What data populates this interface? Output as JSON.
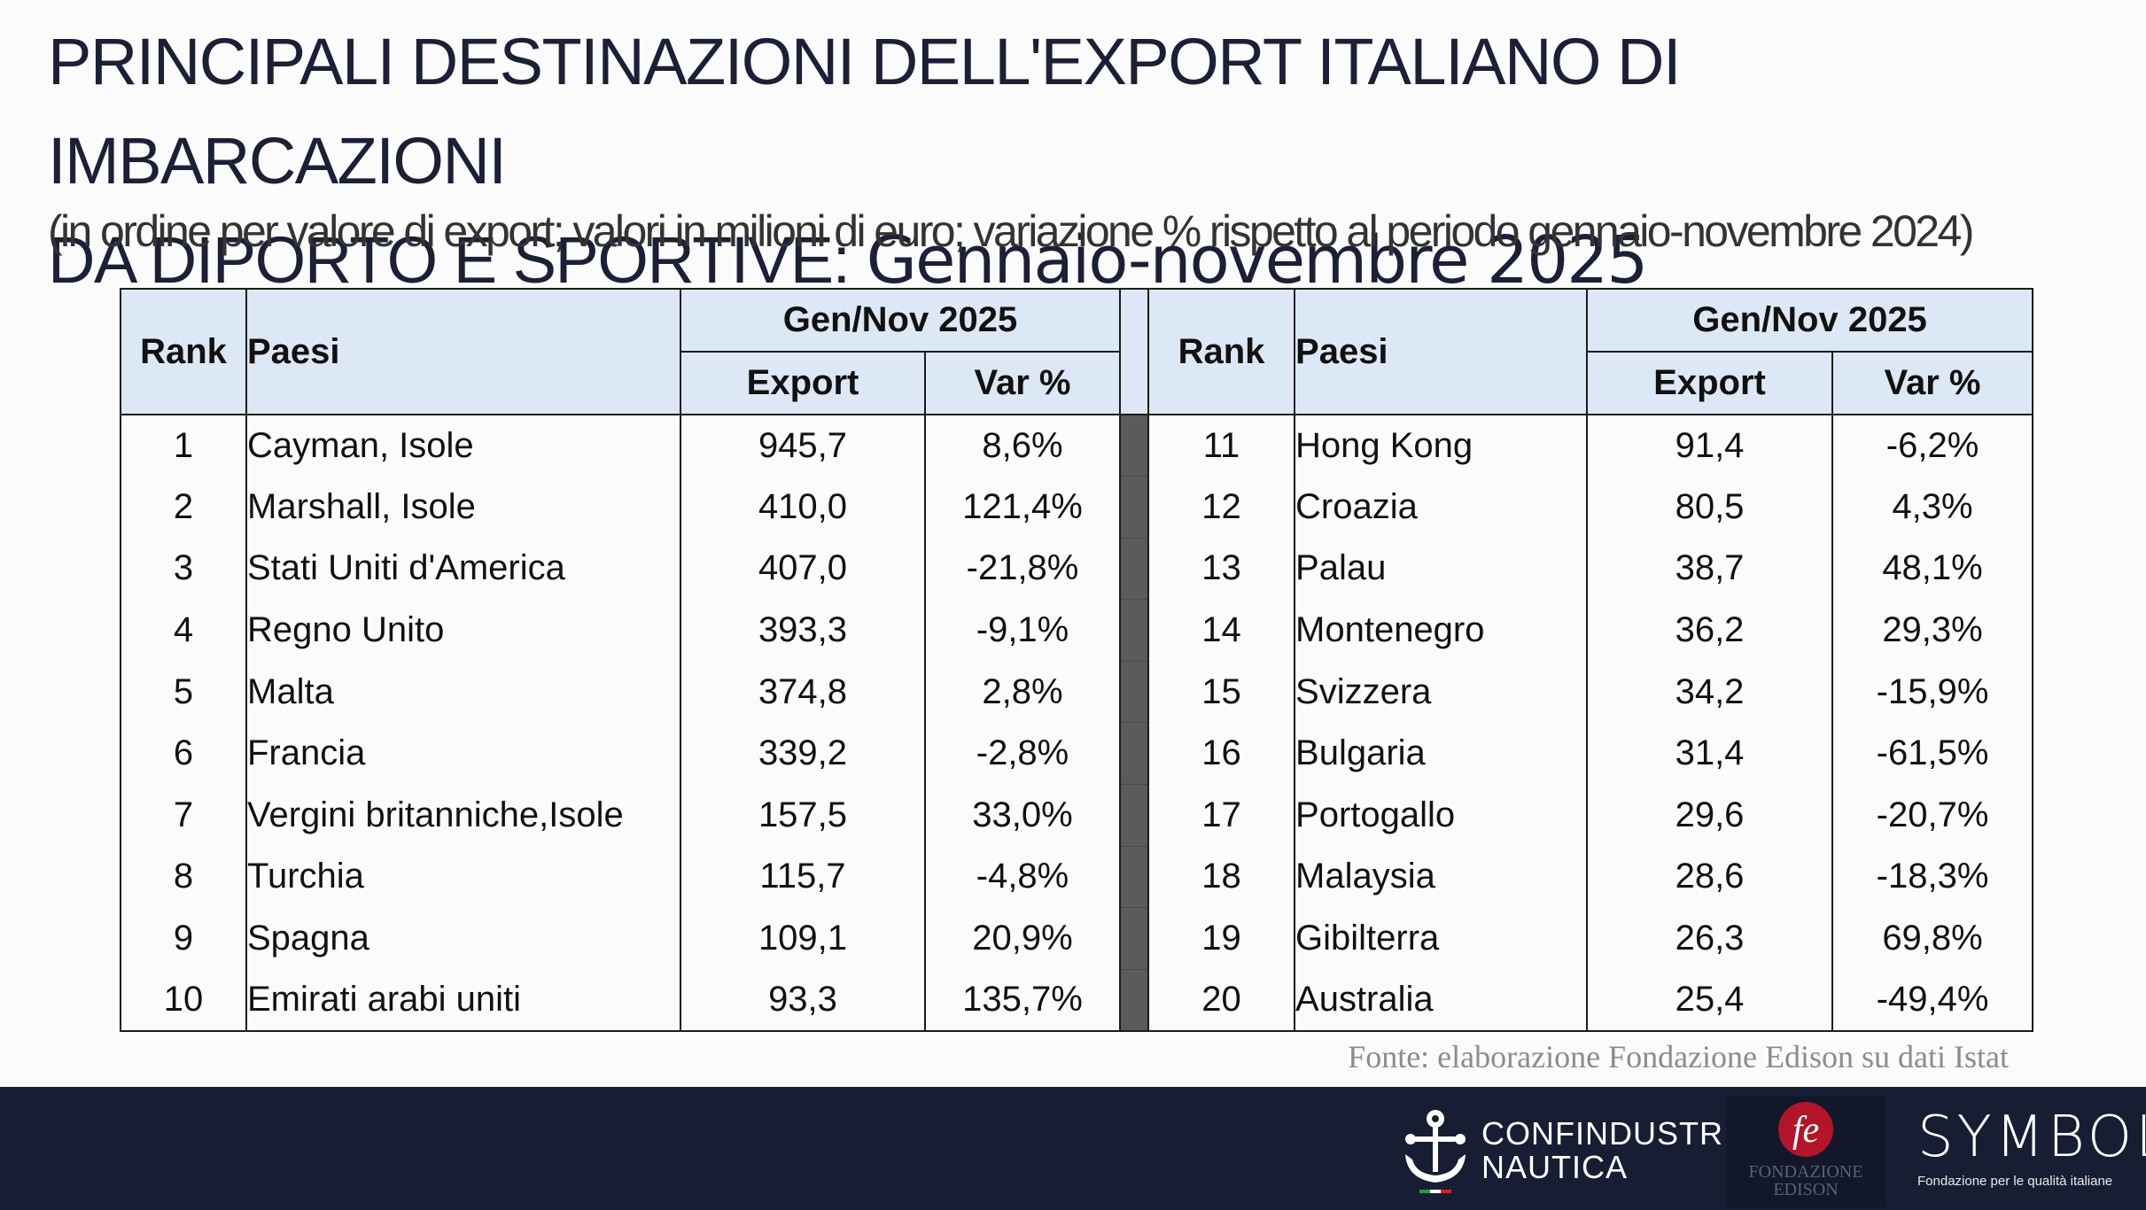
{
  "title": {
    "line1": "PRINCIPALI DESTINAZIONI DELL'EXPORT ITALIANO DI IMBARCAZIONI",
    "line2": "DA DIPORTO E SPORTIVE: ",
    "line2_period": "Gennaio-novembre 2025"
  },
  "subtitle": "(in ordine per valore di export; valori in milioni di euro; variazione % rispetto al periodo gennaio-novembre 2024)",
  "table": {
    "headers": {
      "rank": "Rank",
      "paesi": "Paesi",
      "period": "Gen/Nov 2025",
      "export": "Export",
      "var": "Var %"
    },
    "left_rows": [
      {
        "rank": "1",
        "country": "Cayman, Isole",
        "export": "945,7",
        "var": "8,6%"
      },
      {
        "rank": "2",
        "country": "Marshall, Isole",
        "export": "410,0",
        "var": "121,4%"
      },
      {
        "rank": "3",
        "country": "Stati Uniti d'America",
        "export": "407,0",
        "var": "-21,8%"
      },
      {
        "rank": "4",
        "country": "Regno Unito",
        "export": "393,3",
        "var": "-9,1%"
      },
      {
        "rank": "5",
        "country": "Malta",
        "export": "374,8",
        "var": "2,8%"
      },
      {
        "rank": "6",
        "country": "Francia",
        "export": "339,2",
        "var": "-2,8%"
      },
      {
        "rank": "7",
        "country": "Vergini britanniche,Isole",
        "export": "157,5",
        "var": "33,0%"
      },
      {
        "rank": "8",
        "country": "Turchia",
        "export": "115,7",
        "var": "-4,8%"
      },
      {
        "rank": "9",
        "country": "Spagna",
        "export": "109,1",
        "var": "20,9%"
      },
      {
        "rank": "10",
        "country": "Emirati arabi uniti",
        "export": "93,3",
        "var": "135,7%"
      }
    ],
    "right_rows": [
      {
        "rank": "11",
        "country": "Hong Kong",
        "export": "91,4",
        "var": "-6,2%"
      },
      {
        "rank": "12",
        "country": "Croazia",
        "export": "80,5",
        "var": "4,3%"
      },
      {
        "rank": "13",
        "country": "Palau",
        "export": "38,7",
        "var": "48,1%"
      },
      {
        "rank": "14",
        "country": "Montenegro",
        "export": "36,2",
        "var": "29,3%"
      },
      {
        "rank": "15",
        "country": "Svizzera",
        "export": "34,2",
        "var": "-15,9%"
      },
      {
        "rank": "16",
        "country": "Bulgaria",
        "export": "31,4",
        "var": "-61,5%"
      },
      {
        "rank": "17",
        "country": "Portogallo",
        "export": "29,6",
        "var": "-20,7%"
      },
      {
        "rank": "18",
        "country": "Malaysia",
        "export": "28,6",
        "var": "-18,3%"
      },
      {
        "rank": "19",
        "country": "Gibilterra",
        "export": "26,3",
        "var": "69,8%"
      },
      {
        "rank": "20",
        "country": "Australia",
        "export": "25,4",
        "var": "-49,4%"
      }
    ]
  },
  "source": "Fonte: elaborazione Fondazione Edison su dati Istat",
  "footer": {
    "confindustria": {
      "line1": "CONFINDUSTRIA",
      "line2": "NAUTICA",
      "icon": "anchor-helm-icon"
    },
    "edison": {
      "line1": "FONDAZIONE",
      "line2": "EDISON",
      "monogram": "fe"
    },
    "symbola": {
      "name": "SYMBOLA",
      "tagline": "Fondazione per le qualità italiane"
    },
    "colors": {
      "background": "#171e34",
      "edison_red": "#b2152a",
      "flag_green": "#1e9b4a",
      "flag_red": "#d3202f"
    }
  }
}
